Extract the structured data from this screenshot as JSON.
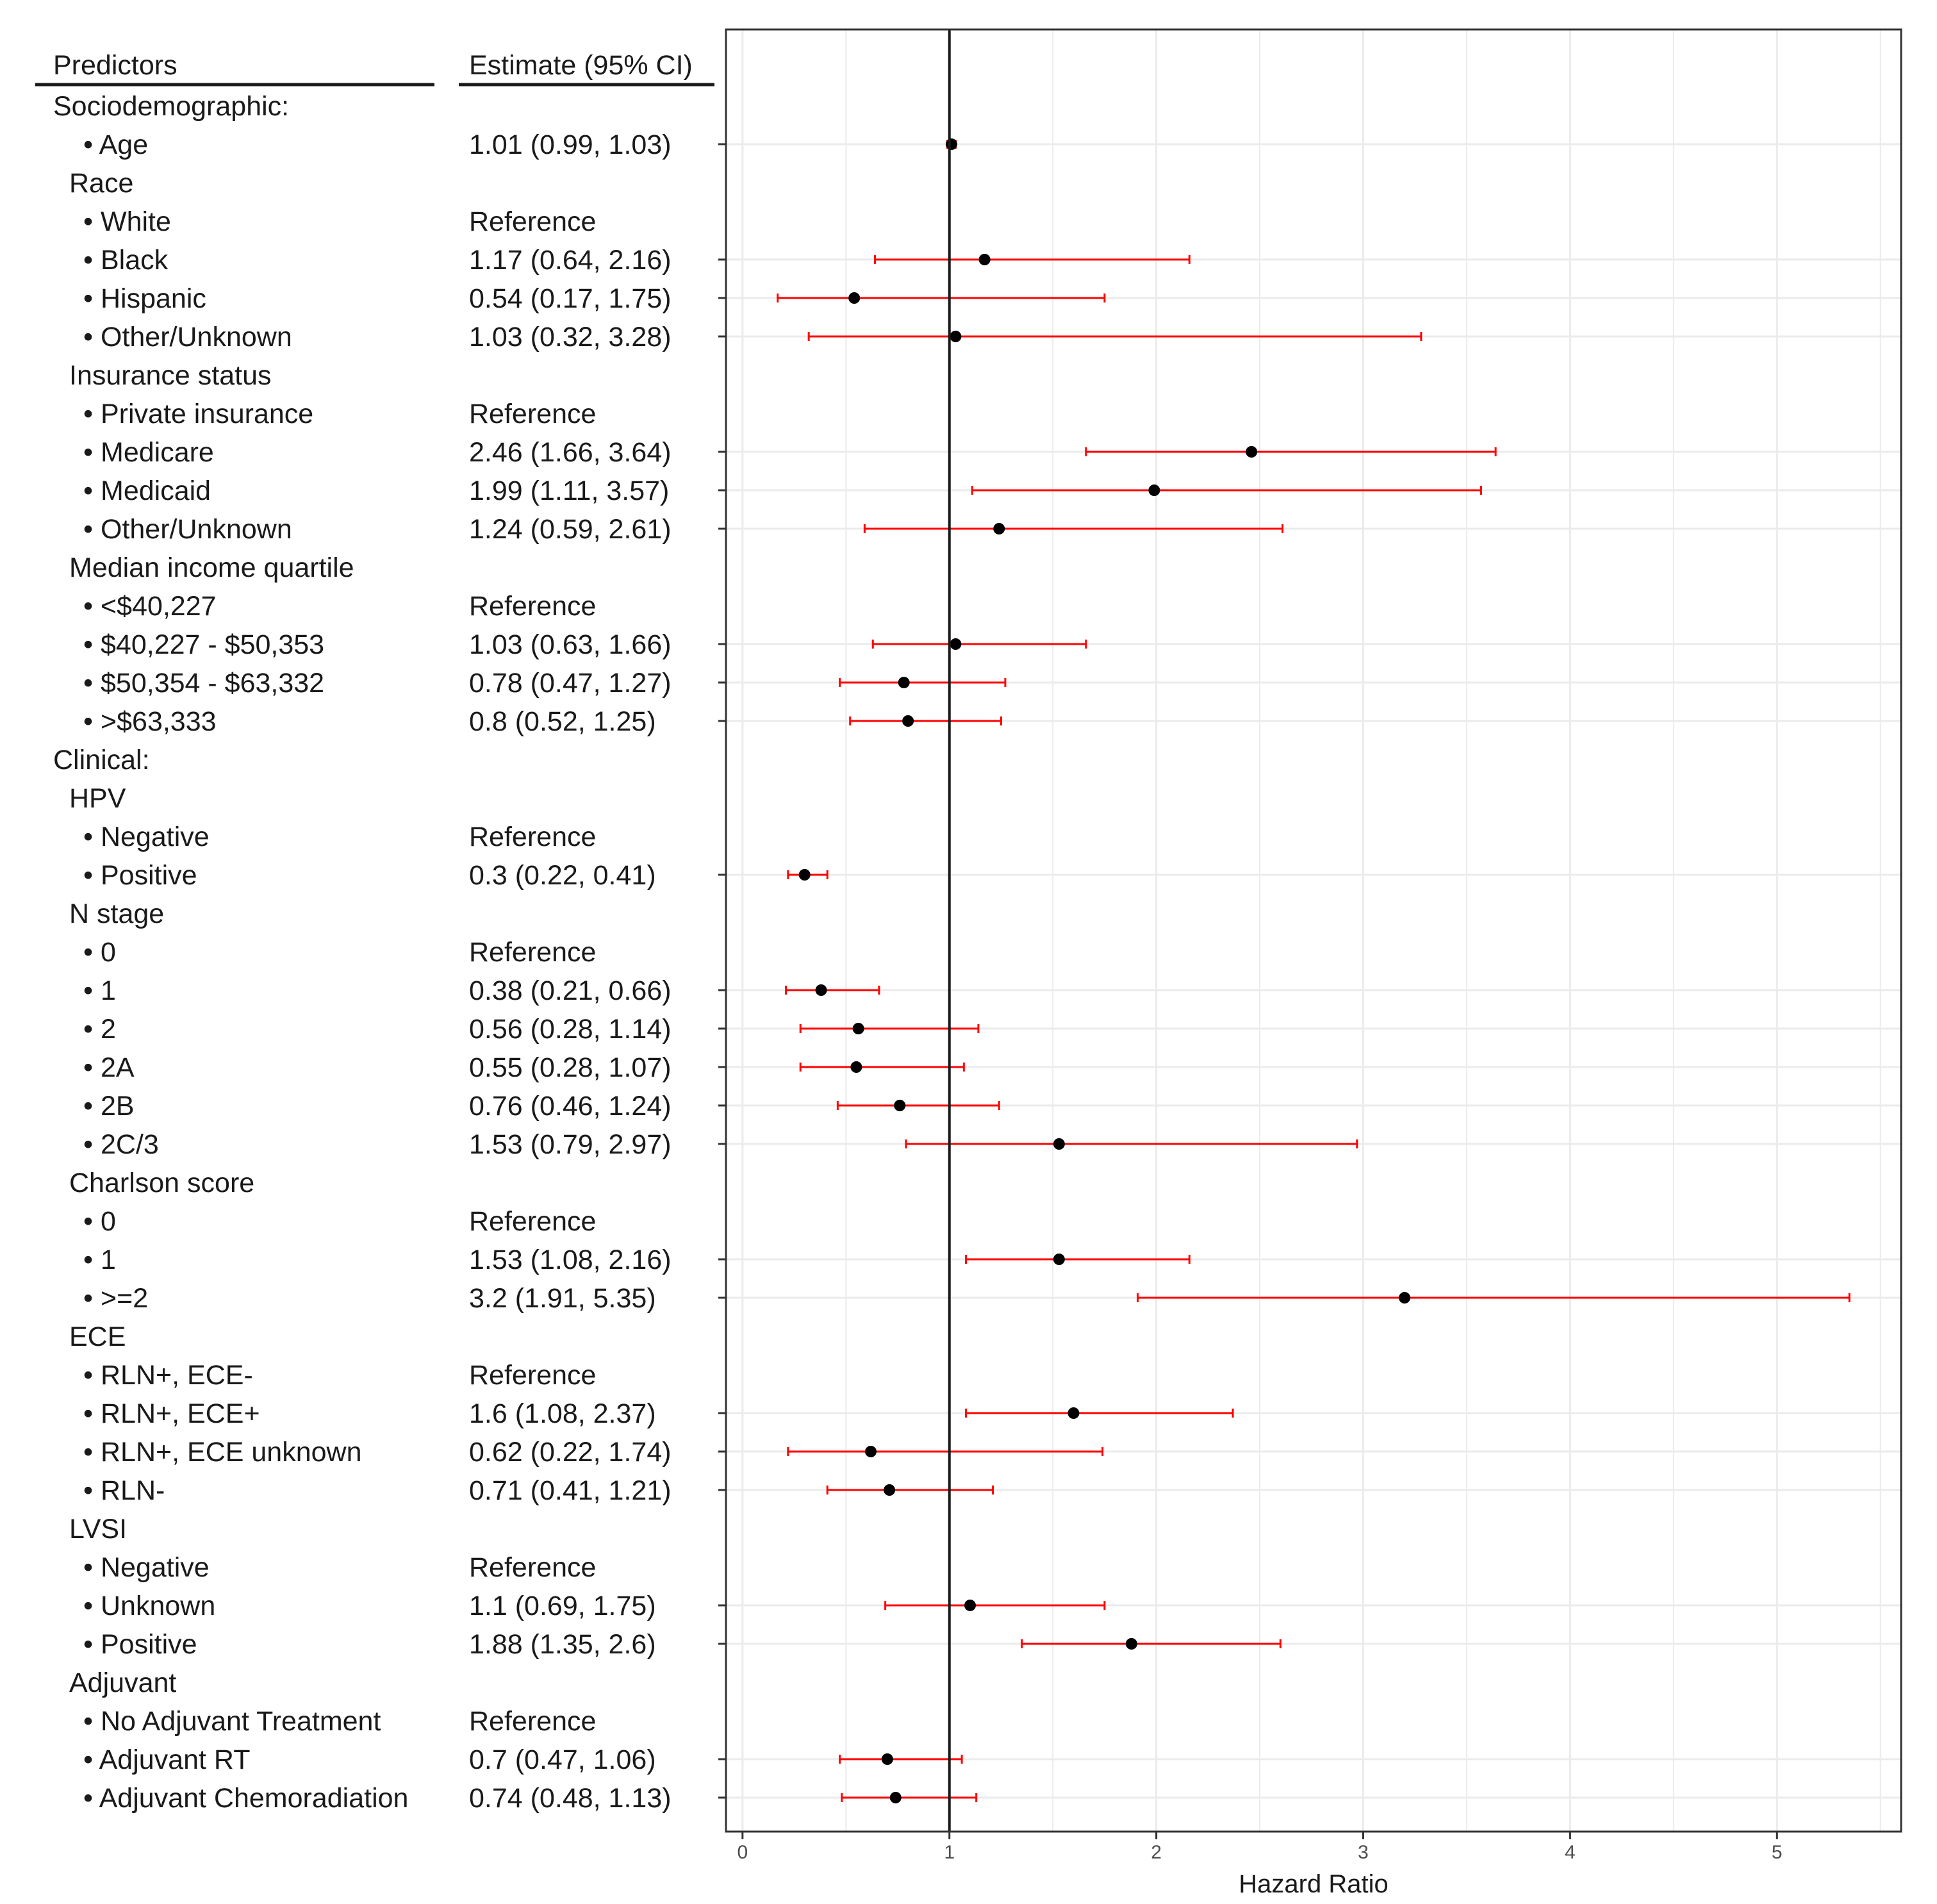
{
  "chart_data": {
    "type": "forest",
    "headers": {
      "predictors": "Predictors",
      "estimate": "Estimate (95% CI)"
    },
    "xlabel": "Hazard Ratio",
    "xlim": [
      -0.08,
      5.6
    ],
    "xticks": [
      0,
      1,
      2,
      3,
      4,
      5
    ],
    "reference_line": 1,
    "colors": {
      "ci": "#ff0000",
      "point": "#000000",
      "refline": "#1a1a1a",
      "grid": "#ebebeb"
    },
    "rows": [
      {
        "label": "Sociodemographic:",
        "level": 0,
        "estimate": ""
      },
      {
        "label": "• Age",
        "level": 2,
        "estimate": "1.01 (0.99, 1.03)",
        "hr": 1.01,
        "lower": 0.99,
        "upper": 1.03
      },
      {
        "label": "Race",
        "level": 1,
        "estimate": ""
      },
      {
        "label": "• White",
        "level": 2,
        "estimate": "Reference"
      },
      {
        "label": "• Black",
        "level": 2,
        "estimate": "1.17 (0.64, 2.16)",
        "hr": 1.17,
        "lower": 0.64,
        "upper": 2.16
      },
      {
        "label": "• Hispanic",
        "level": 2,
        "estimate": "0.54 (0.17, 1.75)",
        "hr": 0.54,
        "lower": 0.17,
        "upper": 1.75
      },
      {
        "label": "• Other/Unknown",
        "level": 2,
        "estimate": "1.03 (0.32, 3.28)",
        "hr": 1.03,
        "lower": 0.32,
        "upper": 3.28
      },
      {
        "label": "Insurance status",
        "level": 1,
        "estimate": ""
      },
      {
        "label": "• Private insurance",
        "level": 2,
        "estimate": "Reference"
      },
      {
        "label": "• Medicare",
        "level": 2,
        "estimate": "2.46 (1.66, 3.64)",
        "hr": 2.46,
        "lower": 1.66,
        "upper": 3.64
      },
      {
        "label": "• Medicaid",
        "level": 2,
        "estimate": "1.99 (1.11, 3.57)",
        "hr": 1.99,
        "lower": 1.11,
        "upper": 3.57
      },
      {
        "label": "• Other/Unknown",
        "level": 2,
        "estimate": "1.24 (0.59, 2.61)",
        "hr": 1.24,
        "lower": 0.59,
        "upper": 2.61
      },
      {
        "label": "Median income quartile",
        "level": 1,
        "estimate": ""
      },
      {
        "label": "• <$40,227",
        "level": 2,
        "estimate": "Reference"
      },
      {
        "label": "• $40,227 - $50,353",
        "level": 2,
        "estimate": "1.03 (0.63, 1.66)",
        "hr": 1.03,
        "lower": 0.63,
        "upper": 1.66
      },
      {
        "label": "• $50,354 - $63,332",
        "level": 2,
        "estimate": "0.78 (0.47, 1.27)",
        "hr": 0.78,
        "lower": 0.47,
        "upper": 1.27
      },
      {
        "label": "• >$63,333",
        "level": 2,
        "estimate": "0.8 (0.52, 1.25)",
        "hr": 0.8,
        "lower": 0.52,
        "upper": 1.25
      },
      {
        "label": "Clinical:",
        "level": 0,
        "estimate": ""
      },
      {
        "label": "HPV",
        "level": 1,
        "estimate": ""
      },
      {
        "label": "• Negative",
        "level": 2,
        "estimate": "Reference"
      },
      {
        "label": "• Positive",
        "level": 2,
        "estimate": "0.3 (0.22, 0.41)",
        "hr": 0.3,
        "lower": 0.22,
        "upper": 0.41
      },
      {
        "label": "N stage",
        "level": 1,
        "estimate": ""
      },
      {
        "label": "• 0",
        "level": 2,
        "estimate": "Reference"
      },
      {
        "label": "• 1",
        "level": 2,
        "estimate": "0.38 (0.21, 0.66)",
        "hr": 0.38,
        "lower": 0.21,
        "upper": 0.66
      },
      {
        "label": "• 2",
        "level": 2,
        "estimate": "0.56 (0.28, 1.14)",
        "hr": 0.56,
        "lower": 0.28,
        "upper": 1.14
      },
      {
        "label": "• 2A",
        "level": 2,
        "estimate": "0.55 (0.28, 1.07)",
        "hr": 0.55,
        "lower": 0.28,
        "upper": 1.07
      },
      {
        "label": "• 2B",
        "level": 2,
        "estimate": "0.76 (0.46, 1.24)",
        "hr": 0.76,
        "lower": 0.46,
        "upper": 1.24
      },
      {
        "label": "• 2C/3",
        "level": 2,
        "estimate": "1.53 (0.79, 2.97)",
        "hr": 1.53,
        "lower": 0.79,
        "upper": 2.97
      },
      {
        "label": "Charlson score",
        "level": 1,
        "estimate": ""
      },
      {
        "label": "• 0",
        "level": 2,
        "estimate": "Reference"
      },
      {
        "label": "• 1",
        "level": 2,
        "estimate": "1.53 (1.08, 2.16)",
        "hr": 1.53,
        "lower": 1.08,
        "upper": 2.16
      },
      {
        "label": "• >=2",
        "level": 2,
        "estimate": "3.2 (1.91, 5.35)",
        "hr": 3.2,
        "lower": 1.91,
        "upper": 5.35
      },
      {
        "label": "ECE",
        "level": 1,
        "estimate": ""
      },
      {
        "label": "• RLN+, ECE-",
        "level": 2,
        "estimate": "Reference"
      },
      {
        "label": "• RLN+, ECE+",
        "level": 2,
        "estimate": "1.6 (1.08, 2.37)",
        "hr": 1.6,
        "lower": 1.08,
        "upper": 2.37
      },
      {
        "label": "• RLN+, ECE unknown",
        "level": 2,
        "estimate": "0.62 (0.22, 1.74)",
        "hr": 0.62,
        "lower": 0.22,
        "upper": 1.74
      },
      {
        "label": "• RLN-",
        "level": 2,
        "estimate": "0.71 (0.41, 1.21)",
        "hr": 0.71,
        "lower": 0.41,
        "upper": 1.21
      },
      {
        "label": "LVSI",
        "level": 1,
        "estimate": ""
      },
      {
        "label": "• Negative",
        "level": 2,
        "estimate": "Reference"
      },
      {
        "label": "• Unknown",
        "level": 2,
        "estimate": "1.1 (0.69, 1.75)",
        "hr": 1.1,
        "lower": 0.69,
        "upper": 1.75
      },
      {
        "label": "• Positive",
        "level": 2,
        "estimate": "1.88 (1.35, 2.6)",
        "hr": 1.88,
        "lower": 1.35,
        "upper": 2.6
      },
      {
        "label": "Adjuvant",
        "level": 1,
        "estimate": ""
      },
      {
        "label": "• No Adjuvant Treatment",
        "level": 2,
        "estimate": "Reference"
      },
      {
        "label": "• Adjuvant RT",
        "level": 2,
        "estimate": "0.7 (0.47, 1.06)",
        "hr": 0.7,
        "lower": 0.47,
        "upper": 1.06
      },
      {
        "label": "• Adjuvant Chemoradiation",
        "level": 2,
        "estimate": "0.74 (0.48, 1.13)",
        "hr": 0.74,
        "lower": 0.48,
        "upper": 1.13
      }
    ]
  }
}
